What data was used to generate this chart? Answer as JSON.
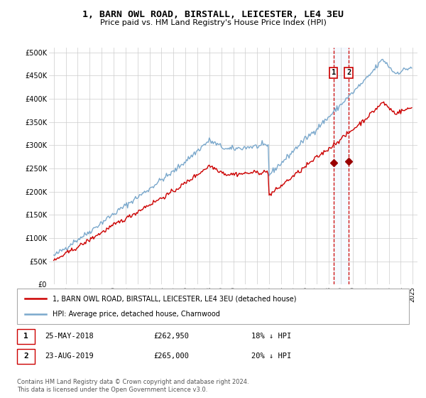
{
  "title": "1, BARN OWL ROAD, BIRSTALL, LEICESTER, LE4 3EU",
  "subtitle": "Price paid vs. HM Land Registry's House Price Index (HPI)",
  "ylabel_ticks": [
    "£0",
    "£50K",
    "£100K",
    "£150K",
    "£200K",
    "£250K",
    "£300K",
    "£350K",
    "£400K",
    "£450K",
    "£500K"
  ],
  "ytick_values": [
    0,
    50000,
    100000,
    150000,
    200000,
    250000,
    300000,
    350000,
    400000,
    450000,
    500000
  ],
  "ylim": [
    0,
    510000
  ],
  "legend_label_red": "1, BARN OWL ROAD, BIRSTALL, LEICESTER, LE4 3EU (detached house)",
  "legend_label_blue": "HPI: Average price, detached house, Charnwood",
  "annotation1_label": "1",
  "annotation1_date": "25-MAY-2018",
  "annotation1_price": "£262,950",
  "annotation1_hpi": "18% ↓ HPI",
  "annotation2_label": "2",
  "annotation2_date": "23-AUG-2019",
  "annotation2_price": "£265,000",
  "annotation2_hpi": "20% ↓ HPI",
  "footer": "Contains HM Land Registry data © Crown copyright and database right 2024.\nThis data is licensed under the Open Government Licence v3.0.",
  "color_red": "#cc0000",
  "color_blue": "#7aa8cc",
  "color_marker": "#990000",
  "vline_color": "#cc0000",
  "vline_fill": "#ddeeff",
  "grid_color": "#cccccc",
  "background_color": "#ffffff",
  "sale1_x": 2018.38,
  "sale1_y": 262950,
  "sale2_x": 2019.65,
  "sale2_y": 265000,
  "vline1_x": 2018.38,
  "vline2_x": 2019.65,
  "xtick_years": [
    1995,
    1996,
    1997,
    1998,
    1999,
    2000,
    2001,
    2002,
    2003,
    2004,
    2005,
    2006,
    2007,
    2008,
    2009,
    2010,
    2011,
    2012,
    2013,
    2014,
    2015,
    2016,
    2017,
    2018,
    2019,
    2020,
    2021,
    2022,
    2023,
    2024,
    2025
  ],
  "xlim_left": 1994.6,
  "xlim_right": 2025.4
}
